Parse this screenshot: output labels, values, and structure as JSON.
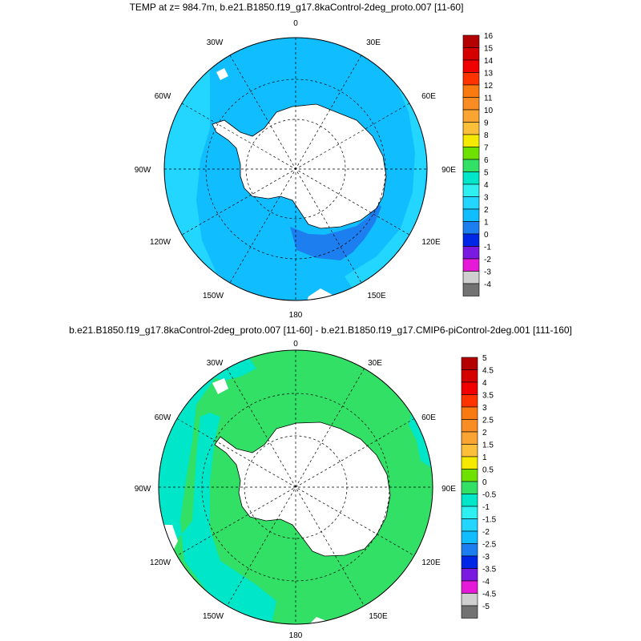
{
  "panels": [
    {
      "title": "TEMP at z= 984.7m, b.e21.B1850.f19_g17.8kaControl-2deg_proto.007 [11-60]",
      "lon_labels": {
        "top": "0",
        "top_right": "30E",
        "top_left": "30W",
        "upper_right": "60E",
        "upper_left": "60W",
        "right": "90E",
        "left": "90W",
        "lower_right": "120E",
        "lower_left": "120W",
        "bottom_right": "150E",
        "bottom_left": "150W",
        "bottom": "180"
      },
      "legend": {
        "labels": [
          "16",
          "15",
          "14",
          "13",
          "12",
          "11",
          "10",
          "9",
          "8",
          "7",
          "6",
          "5",
          "4",
          "3",
          "2",
          "1",
          "0",
          "-1",
          "-2",
          "-3",
          "-4"
        ],
        "colors": [
          "#b30000",
          "#d50000",
          "#f00000",
          "#ff3300",
          "#f97a10",
          "#f98d24",
          "#faa432",
          "#fbbf3a",
          "#f5e900",
          "#6fe100",
          "#33e066",
          "#00e6c8",
          "#2ff0f0",
          "#22d6ff",
          "#10bdff",
          "#1d7ef0",
          "#0026e6",
          "#7a1ae0",
          "#e619d9",
          "#cfcfcf",
          "#727272"
        ]
      },
      "fields": {
        "ocean_main": "#10bdff",
        "ocean_secondary": "#22d6ff",
        "ocean_patch": "#1d7ef0",
        "land": "#ffffff"
      }
    },
    {
      "title": "b.e21.B1850.f19_g17.8kaControl-2deg_proto.007 [11-60] - b.e21.B1850.f19_g17.CMIP6-piControl-2deg.001 [111-160]",
      "lon_labels": {
        "top": "0",
        "top_right": "30E",
        "top_left": "30W",
        "upper_right": "60E",
        "upper_left": "60W",
        "right": "90E",
        "left": "90W",
        "lower_right": "120E",
        "lower_left": "120W",
        "bottom_right": "150E",
        "bottom_left": "150W",
        "bottom": "180"
      },
      "legend": {
        "labels": [
          "5",
          "4.5",
          "4",
          "3.5",
          "3",
          "2.5",
          "2",
          "1.5",
          "1",
          "0.5",
          "0",
          "-0.5",
          "-1",
          "-1.5",
          "-2",
          "-2.5",
          "-3",
          "-3.5",
          "-4",
          "-4.5",
          "-5"
        ],
        "colors": [
          "#b30000",
          "#d50000",
          "#f00000",
          "#ff3300",
          "#f97a10",
          "#f98d24",
          "#faa432",
          "#fbbf3a",
          "#f5e900",
          "#6fe100",
          "#33e066",
          "#00e6c8",
          "#2ff0f0",
          "#22d6ff",
          "#10bdff",
          "#1d7ef0",
          "#0026e6",
          "#7a1ae0",
          "#e619d9",
          "#cfcfcf",
          "#727272"
        ]
      },
      "fields": {
        "ocean_main": "#33e066",
        "ocean_secondary": "#00e6c8",
        "land": "#ffffff"
      }
    }
  ]
}
